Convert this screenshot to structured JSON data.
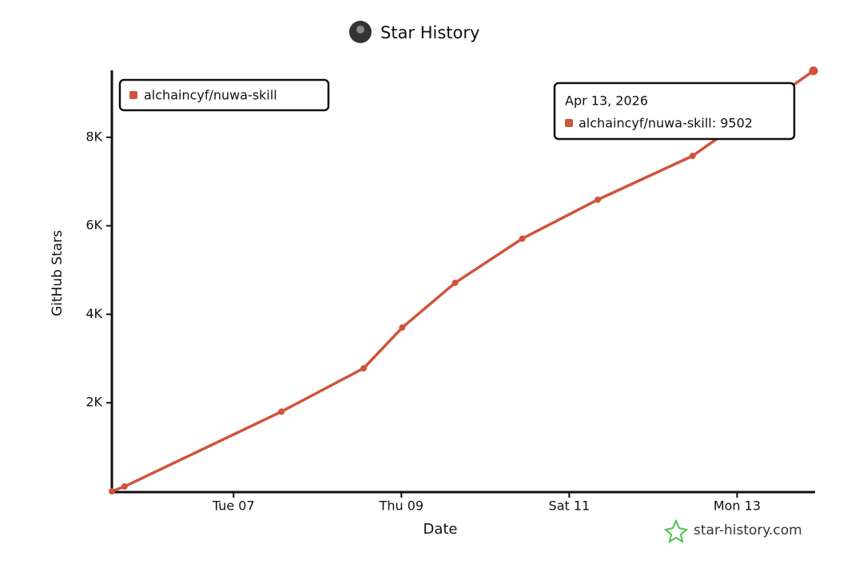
{
  "chart_data": {
    "type": "line",
    "title": "Star History",
    "x_label": "Date",
    "y_label": "GitHub Stars",
    "x": [
      5.55,
      5.7,
      7.57,
      8.55,
      9.01,
      9.64,
      10.44,
      11.34,
      12.47,
      13.91
    ],
    "series": [
      {
        "name": "alchaincyf/nuwa-skill",
        "color": "#d0533b",
        "values": [
          0,
          108,
          1800,
          2780,
          3700,
          4710,
          5710,
          6590,
          7580,
          9502
        ]
      }
    ],
    "xlim": [
      5.55,
      13.91
    ],
    "xticks": [
      {
        "value": 7,
        "label": "Tue 07"
      },
      {
        "value": 9,
        "label": "Thu 09"
      },
      {
        "value": 11,
        "label": "Sat 11"
      },
      {
        "value": 13,
        "label": "Mon 13"
      }
    ],
    "ylim": [
      0,
      9550
    ],
    "yticks": [
      {
        "value": 2000,
        "label": "2K"
      },
      {
        "value": 4000,
        "label": "4K"
      },
      {
        "value": 6000,
        "label": "6K"
      },
      {
        "value": 8000,
        "label": "8K"
      }
    ],
    "legend": "top-left",
    "tooltip": {
      "date": "Apr 13, 2026",
      "text": "alchaincyf/nuwa-skill: 9502"
    },
    "watermark": "star-history.com"
  }
}
